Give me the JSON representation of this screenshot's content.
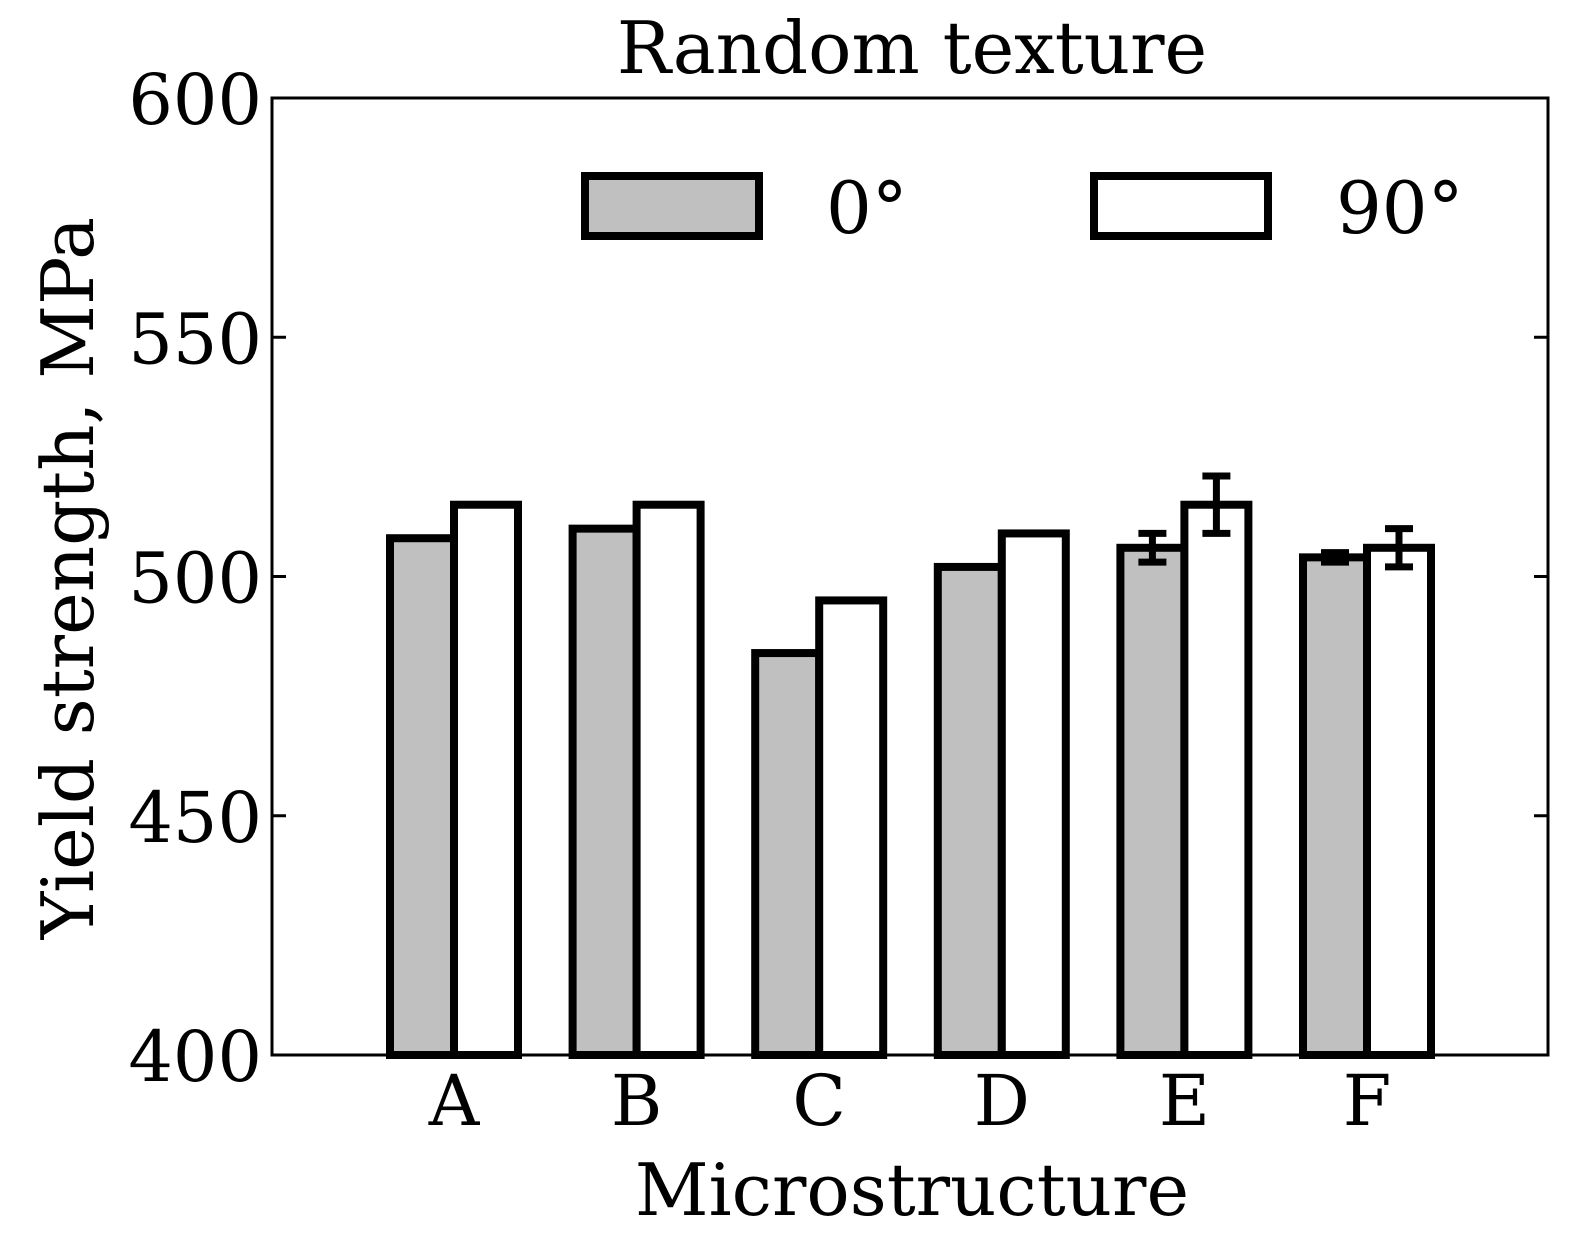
{
  "chart_data": {
    "type": "bar",
    "title": "Random texture",
    "xlabel": "Microstructure",
    "ylabel": "Yield strength, MPa",
    "ylim": [
      400,
      600
    ],
    "yticks": [
      "400",
      "450",
      "500",
      "550",
      "600"
    ],
    "categories": [
      "A",
      "B",
      "C",
      "D",
      "E",
      "F"
    ],
    "series": [
      {
        "name": "0°",
        "color": "#c0c0c0",
        "values": [
          508,
          510,
          484,
          502,
          506,
          504
        ],
        "errors": [
          null,
          null,
          null,
          null,
          3,
          1
        ]
      },
      {
        "name": "90°",
        "color": "#ffffff",
        "values": [
          515,
          515,
          495,
          509,
          515,
          506
        ],
        "errors": [
          null,
          null,
          null,
          null,
          6,
          4
        ]
      }
    ],
    "legend_position": "top",
    "grid": false
  }
}
